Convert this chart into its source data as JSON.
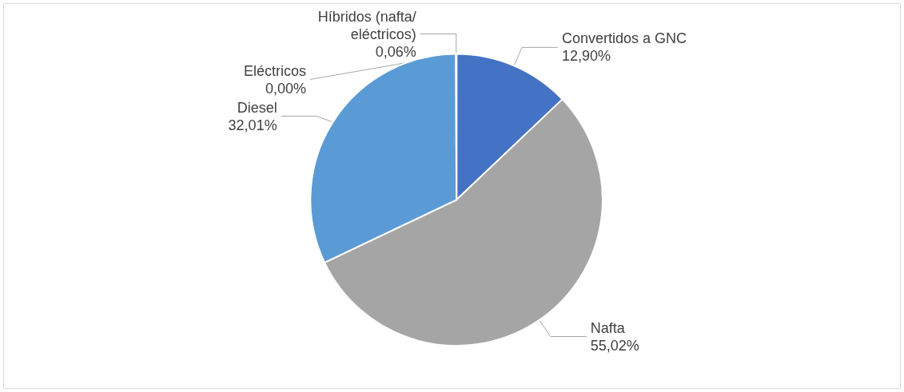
{
  "chart_data": {
    "type": "pie",
    "categories": [
      "Convertidos a GNC",
      "Nafta",
      "Diesel",
      "Híbridos (nafta/eléctricos)",
      "Eléctricos"
    ],
    "values": [
      12.9,
      55.02,
      32.01,
      0.06,
      0.0
    ],
    "value_labels": [
      "12,90%",
      "55,02%",
      "32,01%",
      "0,06%",
      "0,00%"
    ],
    "colors": [
      "#4472c4",
      "#a5a5a5",
      "#5b9bd5",
      "#70ad47",
      "#264478"
    ],
    "legend": false
  }
}
